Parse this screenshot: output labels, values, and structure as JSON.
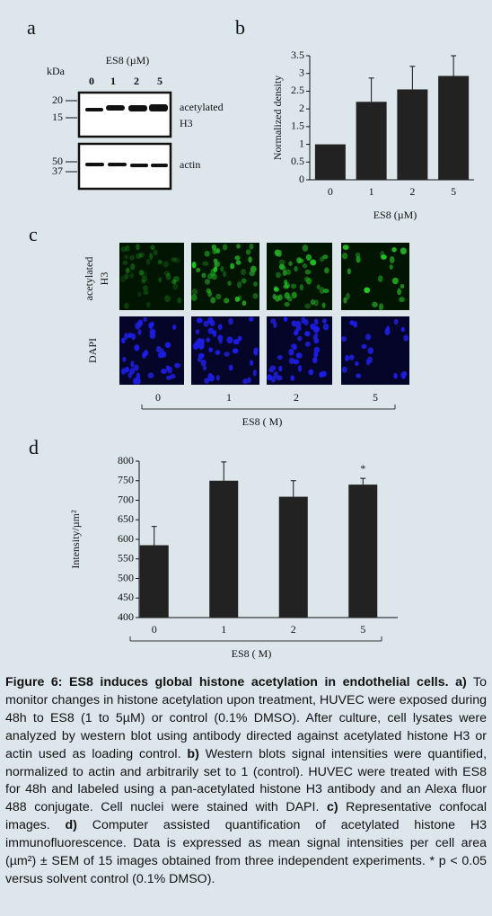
{
  "panel_a": {
    "label": "a",
    "treatment": "ES8 (µM)",
    "unit": "kDa",
    "lanes": [
      "0",
      "1",
      "2",
      "5"
    ],
    "blots": [
      {
        "markers": [
          "20",
          "15"
        ],
        "label_lines": [
          "acetylated",
          "H3"
        ]
      },
      {
        "markers": [
          "50",
          "37"
        ],
        "label_lines": [
          "actin"
        ]
      }
    ]
  },
  "panel_c": {
    "label": "c",
    "rows": [
      {
        "label_lines": [
          "acetylated",
          "H3"
        ]
      },
      {
        "label_lines": [
          "DAPI"
        ]
      }
    ],
    "columns": [
      "0",
      "1",
      "2",
      "5"
    ],
    "xlabel": "ES8 (  M)"
  },
  "chart_data": [
    {
      "type": "bar",
      "panel": "b",
      "categories": [
        "0",
        "1",
        "2",
        "5"
      ],
      "values": [
        1,
        2.2,
        2.55,
        2.93
      ],
      "errors": [
        0,
        0.67,
        0.65,
        0.57
      ],
      "color": "#222222",
      "ylim": [
        0,
        3.5
      ],
      "yticks": [
        0,
        0.5,
        1,
        1.5,
        2,
        2.5,
        3,
        3.5
      ],
      "ylabel": "Normalized density",
      "xlabel": "ES8 (µM)"
    },
    {
      "type": "bar",
      "panel": "d",
      "categories": [
        "0",
        "1",
        "2",
        "5"
      ],
      "values": [
        585,
        750,
        709,
        740
      ],
      "errors": [
        48,
        48,
        41,
        16
      ],
      "color": "#222222",
      "ylim": [
        400,
        800
      ],
      "yticks": [
        400,
        450,
        500,
        550,
        600,
        650,
        700,
        750,
        800
      ],
      "ylabel": "Intensity/µm²",
      "xlabel": "ES8 (  M)",
      "annotations": [
        {
          "text": "*"
        }
      ]
    }
  ],
  "caption": {
    "title": "Figure 6: ES8 induces global histone acetylation in endothelial cells.",
    "parts": [
      {
        "label": "a)",
        "text": "To monitor changes in histone acetylation upon treatment, HUVEC were exposed during 48h to ES8 (1 to 5µM) or control (0.1% DMSO). After culture, cell lysates were analyzed by western blot using antibody directed against acetylated histone H3 or actin used as loading control."
      },
      {
        "label": "b)",
        "text": "Western blots signal intensities were quantified, normalized to actin and arbitrarily set to 1 (control). HUVEC were treated with ES8 for 48h and labeled using a pan-acetylated histone H3 antibody and an Alexa fluor 488 conjugate. Cell nuclei were stained with DAPI."
      },
      {
        "label": "c)",
        "text": "Representative confocal images."
      },
      {
        "label": "d)",
        "text": "Computer assisted quantification of acetylated histone H3 immunofluorescence. Data is expressed as mean signal intensities per cell area (µm²) ± SEM of 15 images obtained from three independent experiments. * p < 0.05 versus solvent control (0.1% DMSO)."
      }
    ]
  }
}
